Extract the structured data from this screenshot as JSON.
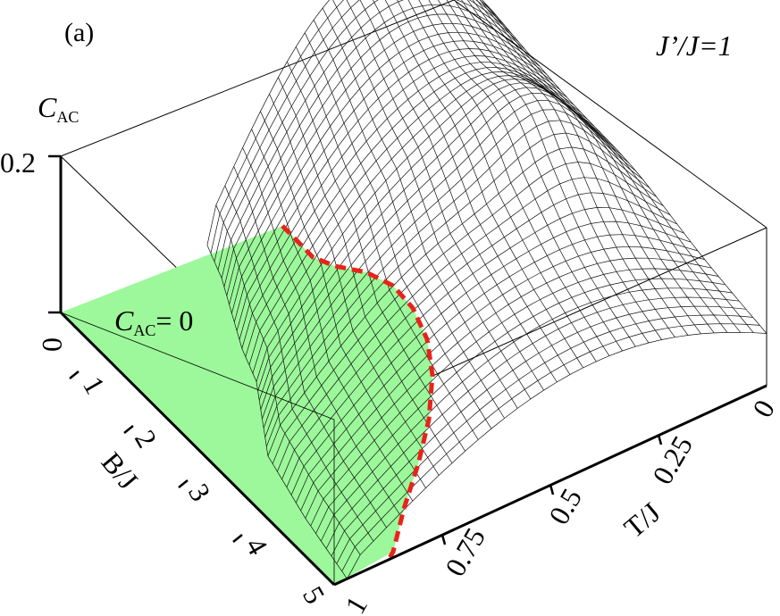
{
  "chart_data": {
    "type": "surface",
    "panel_label": "(a)",
    "parameter_label": "J’/J=1",
    "z_axis": {
      "label": "C",
      "label_sub": "AC",
      "ticks": [
        "0.2",
        "0"
      ],
      "range": [
        0,
        0.2
      ]
    },
    "b_axis": {
      "label": "B/J",
      "ticks": [
        "0",
        "1",
        "2",
        "3",
        "4",
        "5"
      ],
      "range": [
        0,
        5
      ]
    },
    "t_axis": {
      "label": "T/J",
      "ticks": [
        "0",
        "0.25",
        "0.5",
        "0.75",
        "1"
      ],
      "range": [
        0,
        1
      ]
    },
    "region_label": {
      "symbol": "C",
      "sub": "AC",
      "rest": "= 0"
    },
    "colors": {
      "region_fill": "#9cf89a",
      "boundary": "#e8231b",
      "mesh": "#111111",
      "surface": "#ffffff"
    },
    "boundary_curve": {
      "description_points": [
        {
          "B": 0.0,
          "T": 0.66
        },
        {
          "B": 0.5,
          "T": 0.69
        },
        {
          "B": 1.0,
          "T": 0.73
        },
        {
          "B": 1.5,
          "T": 0.77
        },
        {
          "B": 2.0,
          "T": 0.8
        },
        {
          "B": 2.5,
          "T": 0.85
        },
        {
          "B": 3.0,
          "T": 0.9
        },
        {
          "B": 4.0,
          "T": 0.94
        },
        {
          "B": 5.0,
          "T": 0.97
        }
      ]
    }
  }
}
